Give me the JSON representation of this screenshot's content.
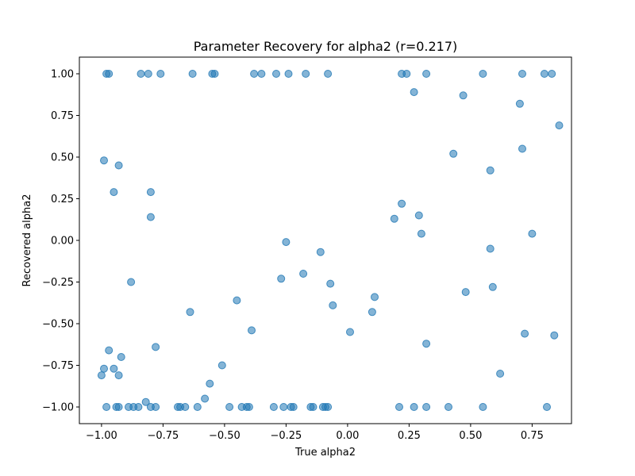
{
  "chart_data": {
    "type": "scatter",
    "title": "Parameter Recovery for alpha2 (r=0.217)",
    "xlabel": "True alpha2",
    "ylabel": "Recovered alpha2",
    "xlim": [
      -1.09,
      0.91
    ],
    "ylim": [
      -1.1,
      1.1
    ],
    "grid": false,
    "marker_color": "#1f77b4",
    "marker_alpha": 0.55,
    "x_ticks": [
      -1.0,
      -0.75,
      -0.5,
      -0.25,
      0.0,
      0.25,
      0.5,
      0.75
    ],
    "x_tick_labels": [
      "−1.00",
      "−0.75",
      "−0.50",
      "−0.25",
      "0.00",
      "0.25",
      "0.50",
      "0.75"
    ],
    "y_ticks": [
      -1.0,
      -0.75,
      -0.5,
      -0.25,
      0.0,
      0.25,
      0.5,
      0.75,
      1.0
    ],
    "y_tick_labels": [
      "−1.00",
      "−0.75",
      "−0.50",
      "−0.25",
      "0.00",
      "0.25",
      "0.50",
      "0.75",
      "1.00"
    ],
    "points": [
      {
        "x": -0.98,
        "y": 1.0
      },
      {
        "x": -0.97,
        "y": 1.0
      },
      {
        "x": -0.84,
        "y": 1.0
      },
      {
        "x": -0.81,
        "y": 1.0
      },
      {
        "x": -0.76,
        "y": 1.0
      },
      {
        "x": -0.63,
        "y": 1.0
      },
      {
        "x": -0.55,
        "y": 1.0
      },
      {
        "x": -0.54,
        "y": 1.0
      },
      {
        "x": -0.38,
        "y": 1.0
      },
      {
        "x": -0.35,
        "y": 1.0
      },
      {
        "x": -0.29,
        "y": 1.0
      },
      {
        "x": -0.24,
        "y": 1.0
      },
      {
        "x": -0.17,
        "y": 1.0
      },
      {
        "x": -0.08,
        "y": 1.0
      },
      {
        "x": 0.22,
        "y": 1.0
      },
      {
        "x": 0.24,
        "y": 1.0
      },
      {
        "x": 0.32,
        "y": 1.0
      },
      {
        "x": 0.55,
        "y": 1.0
      },
      {
        "x": 0.71,
        "y": 1.0
      },
      {
        "x": 0.8,
        "y": 1.0
      },
      {
        "x": 0.83,
        "y": 1.0
      },
      {
        "x": 0.27,
        "y": 0.89
      },
      {
        "x": 0.47,
        "y": 0.87
      },
      {
        "x": 0.7,
        "y": 0.82
      },
      {
        "x": 0.86,
        "y": 0.69
      },
      {
        "x": 0.71,
        "y": 0.55
      },
      {
        "x": 0.43,
        "y": 0.52
      },
      {
        "x": -0.99,
        "y": 0.48
      },
      {
        "x": -0.93,
        "y": 0.45
      },
      {
        "x": 0.58,
        "y": 0.42
      },
      {
        "x": -0.95,
        "y": 0.29
      },
      {
        "x": -0.8,
        "y": 0.29
      },
      {
        "x": 0.22,
        "y": 0.22
      },
      {
        "x": 0.29,
        "y": 0.15
      },
      {
        "x": -0.8,
        "y": 0.14
      },
      {
        "x": 0.19,
        "y": 0.13
      },
      {
        "x": 0.3,
        "y": 0.04
      },
      {
        "x": 0.75,
        "y": 0.04
      },
      {
        "x": -0.25,
        "y": -0.01
      },
      {
        "x": 0.58,
        "y": -0.05
      },
      {
        "x": -0.11,
        "y": -0.07
      },
      {
        "x": -0.18,
        "y": -0.2
      },
      {
        "x": -0.27,
        "y": -0.23
      },
      {
        "x": -0.88,
        "y": -0.25
      },
      {
        "x": -0.07,
        "y": -0.26
      },
      {
        "x": 0.59,
        "y": -0.28
      },
      {
        "x": 0.48,
        "y": -0.31
      },
      {
        "x": 0.11,
        "y": -0.34
      },
      {
        "x": -0.45,
        "y": -0.36
      },
      {
        "x": -0.06,
        "y": -0.39
      },
      {
        "x": -0.64,
        "y": -0.43
      },
      {
        "x": 0.1,
        "y": -0.43
      },
      {
        "x": -0.39,
        "y": -0.54
      },
      {
        "x": 0.01,
        "y": -0.55
      },
      {
        "x": 0.72,
        "y": -0.56
      },
      {
        "x": 0.84,
        "y": -0.57
      },
      {
        "x": 0.32,
        "y": -0.62
      },
      {
        "x": -0.78,
        "y": -0.64
      },
      {
        "x": -0.97,
        "y": -0.66
      },
      {
        "x": -0.92,
        "y": -0.7
      },
      {
        "x": -0.51,
        "y": -0.75
      },
      {
        "x": -0.99,
        "y": -0.77
      },
      {
        "x": -0.95,
        "y": -0.77
      },
      {
        "x": 0.62,
        "y": -0.8
      },
      {
        "x": -1.0,
        "y": -0.81
      },
      {
        "x": -0.93,
        "y": -0.81
      },
      {
        "x": -0.56,
        "y": -0.86
      },
      {
        "x": -0.58,
        "y": -0.95
      },
      {
        "x": -0.82,
        "y": -0.97
      },
      {
        "x": -0.98,
        "y": -1.0
      },
      {
        "x": -0.94,
        "y": -1.0
      },
      {
        "x": -0.93,
        "y": -1.0
      },
      {
        "x": -0.89,
        "y": -1.0
      },
      {
        "x": -0.87,
        "y": -1.0
      },
      {
        "x": -0.85,
        "y": -1.0
      },
      {
        "x": -0.8,
        "y": -1.0
      },
      {
        "x": -0.78,
        "y": -1.0
      },
      {
        "x": -0.69,
        "y": -1.0
      },
      {
        "x": -0.68,
        "y": -1.0
      },
      {
        "x": -0.66,
        "y": -1.0
      },
      {
        "x": -0.61,
        "y": -1.0
      },
      {
        "x": -0.48,
        "y": -1.0
      },
      {
        "x": -0.43,
        "y": -1.0
      },
      {
        "x": -0.41,
        "y": -1.0
      },
      {
        "x": -0.4,
        "y": -1.0
      },
      {
        "x": -0.3,
        "y": -1.0
      },
      {
        "x": -0.26,
        "y": -1.0
      },
      {
        "x": -0.23,
        "y": -1.0
      },
      {
        "x": -0.22,
        "y": -1.0
      },
      {
        "x": -0.15,
        "y": -1.0
      },
      {
        "x": -0.14,
        "y": -1.0
      },
      {
        "x": -0.1,
        "y": -1.0
      },
      {
        "x": -0.09,
        "y": -1.0
      },
      {
        "x": -0.08,
        "y": -1.0
      },
      {
        "x": 0.21,
        "y": -1.0
      },
      {
        "x": 0.27,
        "y": -1.0
      },
      {
        "x": 0.32,
        "y": -1.0
      },
      {
        "x": 0.41,
        "y": -1.0
      },
      {
        "x": 0.55,
        "y": -1.0
      },
      {
        "x": 0.81,
        "y": -1.0
      }
    ]
  }
}
